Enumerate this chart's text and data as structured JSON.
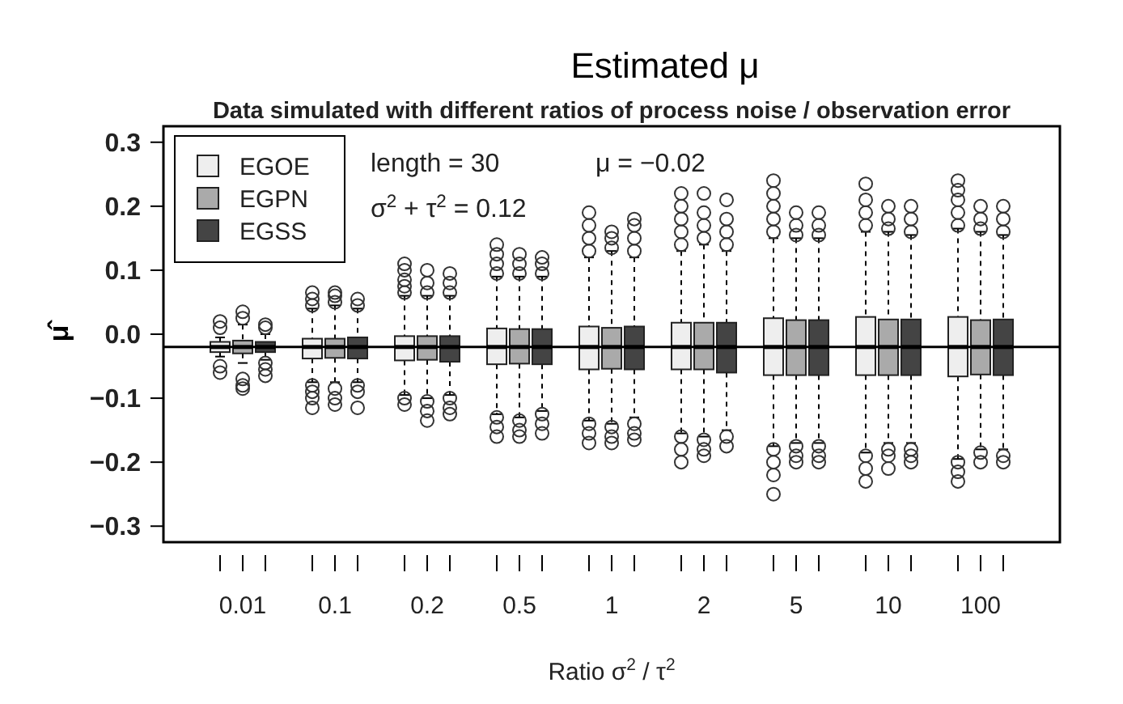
{
  "chart_data": {
    "type": "box",
    "title": "Estimated μ",
    "subtitle": "Data simulated with different ratios of process noise / observation error",
    "xlabel": "Ratio σ$^{2}$ / τ$^{2}$",
    "ylabel": "μ̂",
    "categories": [
      "0.01",
      "0.1",
      "0.2",
      "0.5",
      "1",
      "2",
      "5",
      "10",
      "100"
    ],
    "ylim": [
      -0.325,
      0.325
    ],
    "yticks": [
      {
        "value": -0.3,
        "label": "−0.3"
      },
      {
        "value": -0.2,
        "label": "−0.2"
      },
      {
        "value": -0.1,
        "label": "−0.1"
      },
      {
        "value": 0,
        "label": "0.0"
      },
      0.1,
      0.2,
      0.3
    ],
    "legend": "top left",
    "annotations": [
      "length = 30",
      "σ$^{2}$ + τ$^{2}$ = 0.12",
      "μ = −0.02"
    ],
    "ref_lines": [
      {
        "axis": "y",
        "value": -0.02,
        "color": "#000000"
      }
    ],
    "series": [
      {
        "name": "EGOE",
        "color": "#eeeeee",
        "boxes": [
          {
            "low": -0.035,
            "q1": -0.028,
            "median": -0.02,
            "q3": -0.012,
            "high": -0.005,
            "outliers": [
              0.01,
              0.02,
              -0.05,
              -0.06
            ]
          },
          {
            "low": -0.075,
            "q1": -0.038,
            "median": -0.02,
            "q3": -0.007,
            "high": 0.04,
            "outliers": [
              0.045,
              0.055,
              0.065,
              -0.08,
              -0.09,
              -0.1,
              -0.115
            ]
          },
          {
            "low": -0.095,
            "q1": -0.041,
            "median": -0.02,
            "q3": -0.003,
            "high": 0.06,
            "outliers": [
              0.065,
              0.075,
              0.085,
              0.1,
              0.11,
              -0.1,
              -0.11
            ]
          },
          {
            "low": -0.125,
            "q1": -0.047,
            "median": -0.02,
            "q3": 0.009,
            "high": 0.09,
            "outliers": [
              0.095,
              0.11,
              0.125,
              0.14,
              -0.13,
              -0.145,
              -0.16
            ]
          },
          {
            "low": -0.135,
            "q1": -0.055,
            "median": -0.02,
            "q3": 0.012,
            "high": 0.12,
            "outliers": [
              0.13,
              0.15,
              0.17,
              0.19,
              -0.14,
              -0.155,
              -0.17
            ]
          },
          {
            "low": -0.155,
            "q1": -0.055,
            "median": -0.02,
            "q3": 0.018,
            "high": 0.13,
            "outliers": [
              0.14,
              0.16,
              0.18,
              0.2,
              0.22,
              -0.16,
              -0.18,
              -0.2
            ]
          },
          {
            "low": -0.175,
            "q1": -0.064,
            "median": -0.02,
            "q3": 0.025,
            "high": 0.15,
            "outliers": [
              0.16,
              0.18,
              0.2,
              0.22,
              0.24,
              -0.18,
              -0.2,
              -0.22,
              -0.25
            ]
          },
          {
            "low": -0.185,
            "q1": -0.064,
            "median": -0.02,
            "q3": 0.027,
            "high": 0.16,
            "outliers": [
              0.17,
              0.19,
              0.21,
              0.235,
              -0.19,
              -0.21,
              -0.23
            ]
          },
          {
            "low": -0.195,
            "q1": -0.066,
            "median": -0.02,
            "q3": 0.027,
            "high": 0.165,
            "outliers": [
              0.17,
              0.19,
              0.21,
              0.225,
              0.24,
              -0.2,
              -0.215,
              -0.23
            ]
          }
        ]
      },
      {
        "name": "EGPN",
        "color": "#aaaaaa",
        "boxes": [
          {
            "low": -0.045,
            "q1": -0.03,
            "median": -0.02,
            "q3": -0.01,
            "high": 0.015,
            "outliers": [
              0.025,
              0.035,
              -0.07,
              -0.08,
              -0.085
            ]
          },
          {
            "low": -0.075,
            "q1": -0.037,
            "median": -0.02,
            "q3": -0.007,
            "high": 0.045,
            "outliers": [
              0.05,
              0.06,
              0.065,
              -0.085,
              -0.1,
              -0.11
            ]
          },
          {
            "low": -0.1,
            "q1": -0.04,
            "median": -0.02,
            "q3": -0.003,
            "high": 0.06,
            "outliers": [
              0.065,
              0.08,
              0.1,
              -0.105,
              -0.12,
              -0.135
            ]
          },
          {
            "low": -0.13,
            "q1": -0.046,
            "median": -0.02,
            "q3": 0.008,
            "high": 0.09,
            "outliers": [
              0.095,
              0.11,
              0.125,
              -0.135,
              -0.15,
              -0.16
            ]
          },
          {
            "low": -0.14,
            "q1": -0.054,
            "median": -0.02,
            "q3": 0.01,
            "high": 0.13,
            "outliers": [
              0.135,
              0.15,
              0.16,
              -0.145,
              -0.16,
              -0.17
            ]
          },
          {
            "low": -0.16,
            "q1": -0.055,
            "median": -0.02,
            "q3": 0.018,
            "high": 0.14,
            "outliers": [
              0.15,
              0.17,
              0.19,
              0.22,
              -0.165,
              -0.18,
              -0.19
            ]
          },
          {
            "low": -0.17,
            "q1": -0.064,
            "median": -0.02,
            "q3": 0.022,
            "high": 0.15,
            "outliers": [
              0.155,
              0.17,
              0.19,
              -0.175,
              -0.19,
              -0.2
            ]
          },
          {
            "low": -0.17,
            "q1": -0.064,
            "median": -0.02,
            "q3": 0.023,
            "high": 0.16,
            "outliers": [
              0.165,
              0.18,
              0.2,
              -0.18,
              -0.19,
              -0.21
            ]
          },
          {
            "low": -0.18,
            "q1": -0.063,
            "median": -0.02,
            "q3": 0.022,
            "high": 0.16,
            "outliers": [
              0.165,
              0.18,
              0.2,
              -0.185,
              -0.2
            ]
          }
        ]
      },
      {
        "name": "EGSS",
        "color": "#444444",
        "boxes": [
          {
            "low": -0.04,
            "q1": -0.028,
            "median": -0.02,
            "q3": -0.012,
            "high": 0.0,
            "outliers": [
              0.01,
              0.015,
              -0.045,
              -0.055,
              -0.065
            ]
          },
          {
            "low": -0.075,
            "q1": -0.038,
            "median": -0.02,
            "q3": -0.005,
            "high": 0.04,
            "outliers": [
              0.045,
              0.055,
              -0.08,
              -0.09,
              -0.115
            ]
          },
          {
            "low": -0.095,
            "q1": -0.043,
            "median": -0.02,
            "q3": -0.003,
            "high": 0.06,
            "outliers": [
              0.065,
              0.08,
              0.095,
              -0.1,
              -0.115,
              -0.125
            ]
          },
          {
            "low": -0.12,
            "q1": -0.047,
            "median": -0.02,
            "q3": 0.008,
            "high": 0.09,
            "outliers": [
              0.095,
              0.11,
              0.12,
              -0.125,
              -0.14,
              -0.155
            ]
          },
          {
            "low": -0.13,
            "q1": -0.055,
            "median": -0.02,
            "q3": 0.012,
            "high": 0.12,
            "outliers": [
              0.13,
              0.15,
              0.17,
              0.18,
              -0.14,
              -0.155,
              -0.165
            ]
          },
          {
            "low": -0.15,
            "q1": -0.06,
            "median": -0.02,
            "q3": 0.018,
            "high": 0.13,
            "outliers": [
              0.14,
              0.16,
              0.18,
              0.21,
              -0.16,
              -0.175
            ]
          },
          {
            "low": -0.17,
            "q1": -0.064,
            "median": -0.02,
            "q3": 0.022,
            "high": 0.15,
            "outliers": [
              0.155,
              0.17,
              0.19,
              -0.175,
              -0.19,
              -0.2
            ]
          },
          {
            "low": -0.17,
            "q1": -0.064,
            "median": -0.02,
            "q3": 0.023,
            "high": 0.155,
            "outliers": [
              0.16,
              0.18,
              0.2,
              -0.18,
              -0.19,
              -0.2
            ]
          },
          {
            "low": -0.18,
            "q1": -0.064,
            "median": -0.02,
            "q3": 0.023,
            "high": 0.155,
            "outliers": [
              0.16,
              0.18,
              0.2,
              -0.19,
              -0.2
            ]
          }
        ]
      }
    ]
  }
}
